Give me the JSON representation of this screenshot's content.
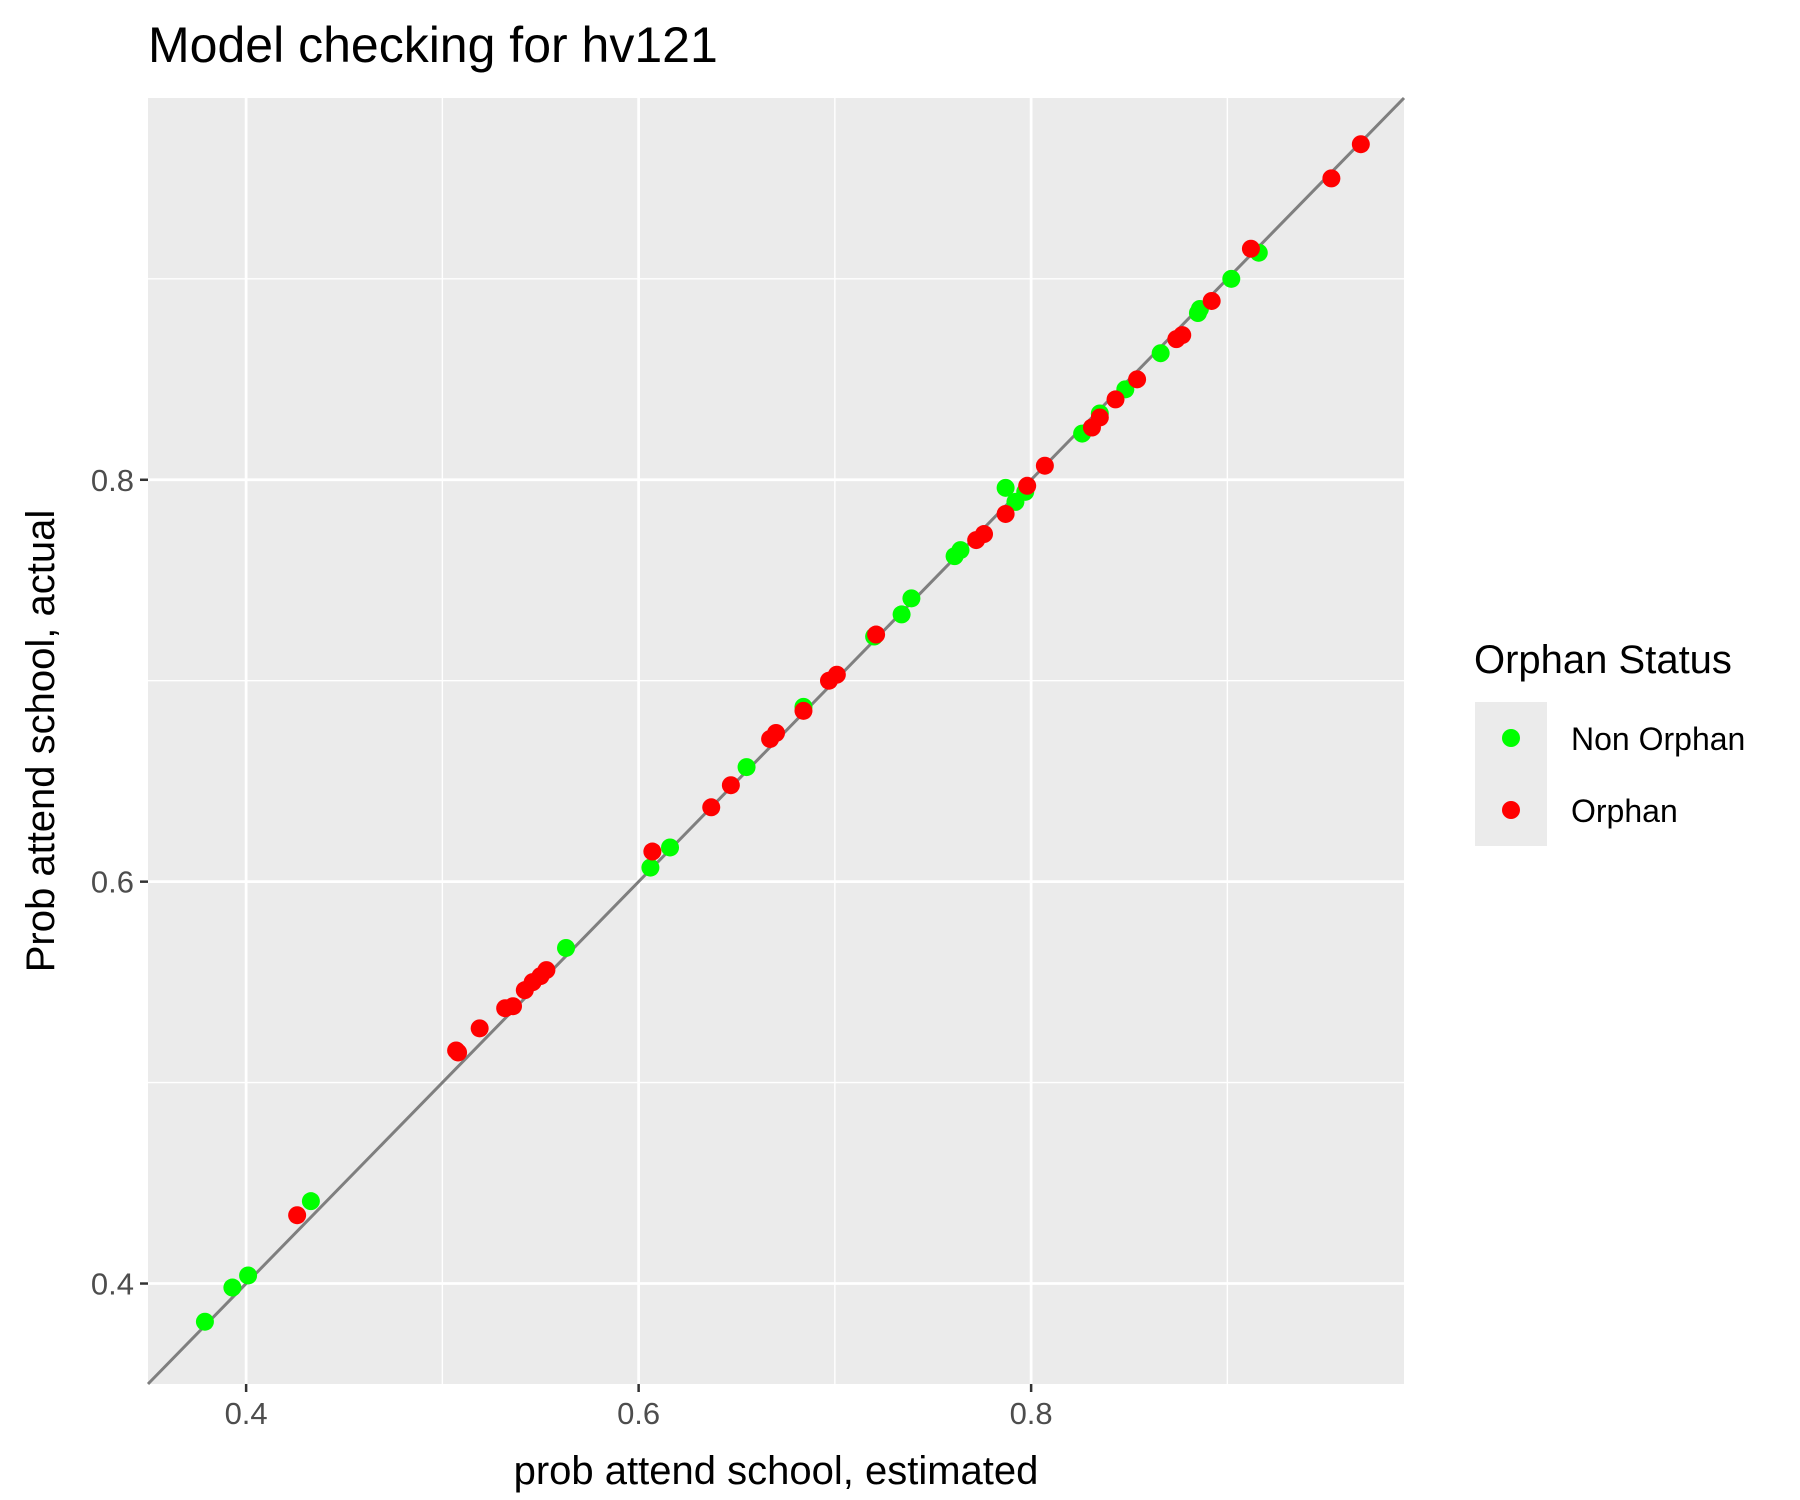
{
  "chart_data": {
    "type": "scatter",
    "title": "Model checking for hv121",
    "xlabel": "prob attend school, estimated",
    "ylabel": "Prob attend school, actual",
    "xlim": [
      0.35,
      0.99
    ],
    "ylim": [
      0.35,
      0.99
    ],
    "x_ticks": [
      0.4,
      0.6,
      0.8
    ],
    "y_ticks": [
      0.4,
      0.6,
      0.8
    ],
    "x_tick_labels": [
      "0.4",
      "0.6",
      "0.8"
    ],
    "y_tick_labels": [
      "0.4",
      "0.6",
      "0.8"
    ],
    "grid": true,
    "reference_line": {
      "type": "identity",
      "color": "#7f7f7f"
    },
    "legend": {
      "title": "Orphan Status",
      "placement": "right",
      "entries": [
        {
          "label": "Non Orphan",
          "color": "#00ff00"
        },
        {
          "label": "Orphan",
          "color": "#ff0000"
        }
      ]
    },
    "series": [
      {
        "name": "Non Orphan",
        "color": "#00ff00",
        "points": [
          [
            0.379,
            0.381
          ],
          [
            0.393,
            0.398
          ],
          [
            0.401,
            0.404
          ],
          [
            0.433,
            0.441
          ],
          [
            0.563,
            0.567
          ],
          [
            0.606,
            0.607
          ],
          [
            0.616,
            0.617
          ],
          [
            0.655,
            0.657
          ],
          [
            0.684,
            0.687
          ],
          [
            0.72,
            0.722
          ],
          [
            0.734,
            0.733
          ],
          [
            0.739,
            0.741
          ],
          [
            0.761,
            0.762
          ],
          [
            0.764,
            0.765
          ],
          [
            0.787,
            0.796
          ],
          [
            0.792,
            0.789
          ],
          [
            0.797,
            0.794
          ],
          [
            0.826,
            0.823
          ],
          [
            0.835,
            0.833
          ],
          [
            0.848,
            0.845
          ],
          [
            0.866,
            0.863
          ],
          [
            0.885,
            0.883
          ],
          [
            0.886,
            0.885
          ],
          [
            0.902,
            0.9
          ],
          [
            0.916,
            0.913
          ]
        ]
      },
      {
        "name": "Orphan",
        "color": "#ff0000",
        "points": [
          [
            0.426,
            0.434
          ],
          [
            0.507,
            0.516
          ],
          [
            0.508,
            0.515
          ],
          [
            0.519,
            0.527
          ],
          [
            0.532,
            0.537
          ],
          [
            0.536,
            0.538
          ],
          [
            0.542,
            0.546
          ],
          [
            0.546,
            0.55
          ],
          [
            0.55,
            0.553
          ],
          [
            0.553,
            0.556
          ],
          [
            0.607,
            0.615
          ],
          [
            0.637,
            0.637
          ],
          [
            0.647,
            0.648
          ],
          [
            0.667,
            0.671
          ],
          [
            0.67,
            0.674
          ],
          [
            0.684,
            0.685
          ],
          [
            0.697,
            0.7
          ],
          [
            0.701,
            0.703
          ],
          [
            0.721,
            0.723
          ],
          [
            0.772,
            0.77
          ],
          [
            0.776,
            0.773
          ],
          [
            0.787,
            0.783
          ],
          [
            0.798,
            0.797
          ],
          [
            0.807,
            0.807
          ],
          [
            0.831,
            0.826
          ],
          [
            0.835,
            0.831
          ],
          [
            0.843,
            0.84
          ],
          [
            0.854,
            0.85
          ],
          [
            0.874,
            0.87
          ],
          [
            0.877,
            0.872
          ],
          [
            0.892,
            0.889
          ],
          [
            0.912,
            0.915
          ],
          [
            0.953,
            0.95
          ],
          [
            0.968,
            0.967
          ]
        ]
      }
    ]
  }
}
